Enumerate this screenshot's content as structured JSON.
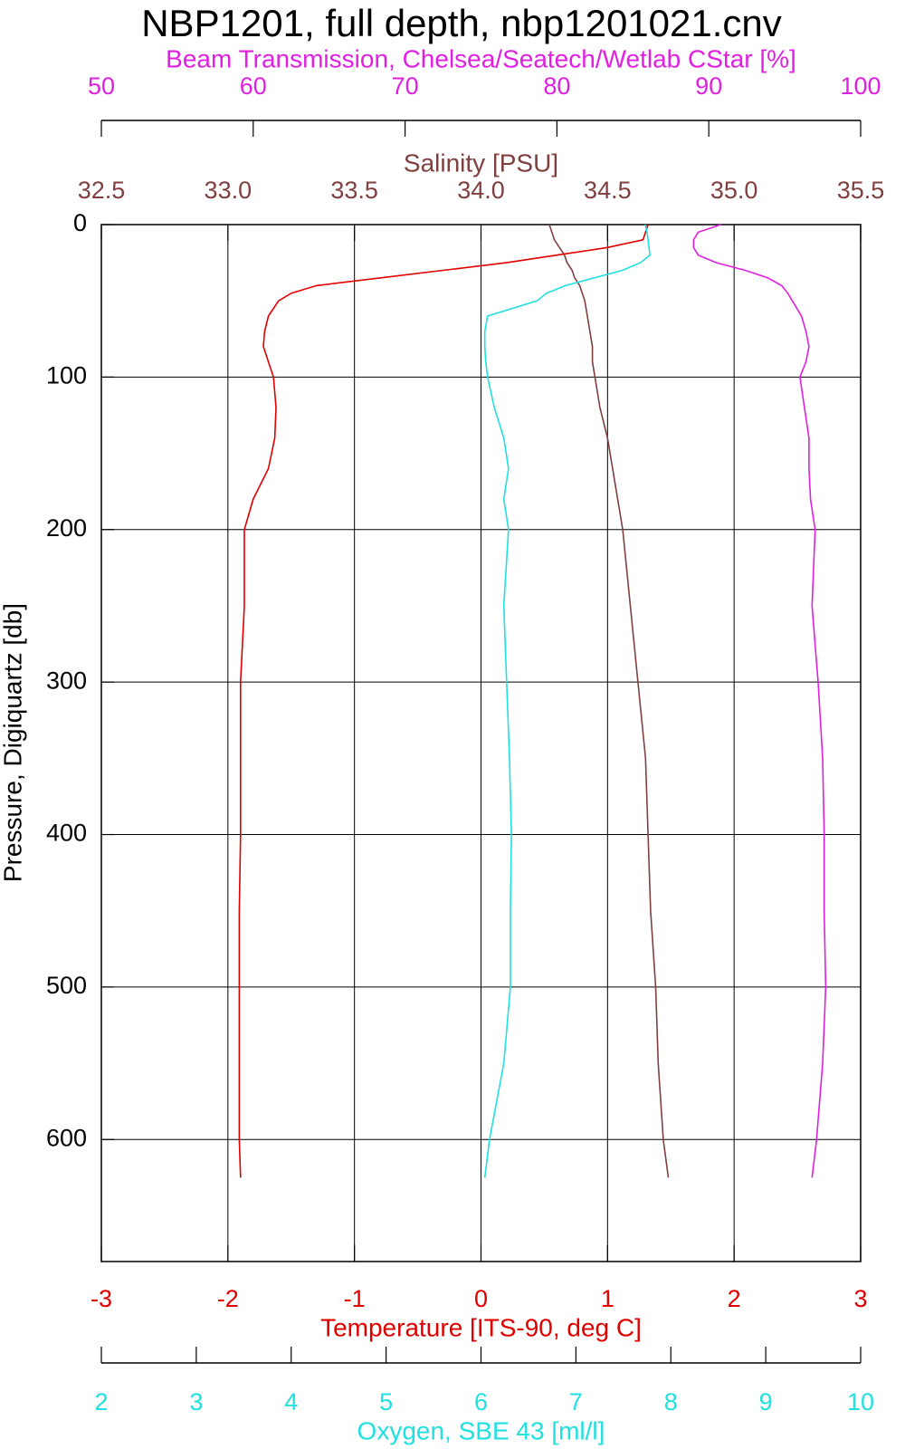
{
  "chart_data": {
    "type": "line",
    "title": "NBP1201, full depth, nbp1201021.cnv",
    "ylabel": "Pressure, Digiquartz [db]",
    "ylim": [
      0,
      680
    ],
    "y_inverted": true,
    "yticks": [
      0,
      100,
      200,
      300,
      400,
      500,
      600
    ],
    "grid": true,
    "y": [
      0,
      5,
      10,
      15,
      20,
      25,
      30,
      35,
      40,
      45,
      50,
      60,
      70,
      80,
      90,
      100,
      120,
      140,
      160,
      180,
      200,
      250,
      300,
      350,
      400,
      450,
      500,
      550,
      600,
      625
    ],
    "x_axes": [
      {
        "label": "Beam Transmission, Chelsea/Seatech/Wetlab CStar [%]",
        "side": "top",
        "color": "#e020e0",
        "xlim": [
          50,
          100
        ],
        "xticks": [
          50,
          60,
          70,
          80,
          90,
          100
        ],
        "values": [
          90.8,
          89.3,
          89.0,
          89.0,
          89.3,
          90.5,
          92.4,
          93.9,
          94.8,
          95.2,
          95.5,
          96.1,
          96.4,
          96.6,
          96.4,
          96.0,
          96.3,
          96.6,
          96.6,
          96.7,
          97.0,
          96.8,
          97.2,
          97.5,
          97.6,
          97.6,
          97.7,
          97.5,
          97.1,
          96.8
        ]
      },
      {
        "label": "Salinity [PSU]",
        "side": "top",
        "color": "#804040",
        "xlim": [
          32.5,
          35.5
        ],
        "xticks": [
          32.5,
          {
            "value": 33,
            "label": "33.0"
          },
          33.5,
          {
            "value": 34,
            "label": "34.0"
          },
          34.5,
          {
            "value": 35,
            "label": "35.0"
          },
          35.5
        ],
        "values": [
          34.27,
          34.28,
          34.29,
          34.31,
          34.33,
          34.34,
          34.36,
          34.37,
          34.39,
          34.4,
          34.41,
          34.42,
          34.43,
          34.44,
          34.44,
          34.45,
          34.47,
          34.5,
          34.52,
          34.54,
          34.56,
          34.59,
          34.62,
          34.65,
          34.66,
          34.67,
          34.69,
          34.7,
          34.72,
          34.74
        ]
      },
      {
        "label": "Temperature [ITS-90, deg C]",
        "side": "bottom",
        "color": "#e00000",
        "xlim": [
          -3,
          3
        ],
        "xticks": [
          -3,
          -2,
          -1,
          0,
          1,
          2,
          3
        ],
        "values": [
          1.32,
          1.3,
          1.28,
          1.0,
          0.6,
          0.2,
          -0.3,
          -0.8,
          -1.3,
          -1.5,
          -1.6,
          -1.68,
          -1.71,
          -1.72,
          -1.68,
          -1.64,
          -1.62,
          -1.63,
          -1.68,
          -1.8,
          -1.87,
          -1.87,
          -1.9,
          -1.9,
          -1.9,
          -1.91,
          -1.91,
          -1.91,
          -1.91,
          -1.9
        ]
      },
      {
        "label": "Oxygen, SBE 43 [ml/l]",
        "side": "bottom",
        "color": "#20e0e0",
        "xlim": [
          2,
          10
        ],
        "xticks": [
          2,
          3,
          4,
          5,
          6,
          7,
          8,
          9,
          10
        ],
        "values": [
          7.73,
          7.75,
          7.76,
          7.77,
          7.78,
          7.68,
          7.49,
          7.19,
          6.89,
          6.69,
          6.59,
          6.07,
          6.04,
          6.04,
          6.05,
          6.07,
          6.14,
          6.24,
          6.29,
          6.24,
          6.29,
          6.24,
          6.27,
          6.3,
          6.32,
          6.31,
          6.31,
          6.24,
          6.09,
          6.04
        ]
      }
    ]
  }
}
